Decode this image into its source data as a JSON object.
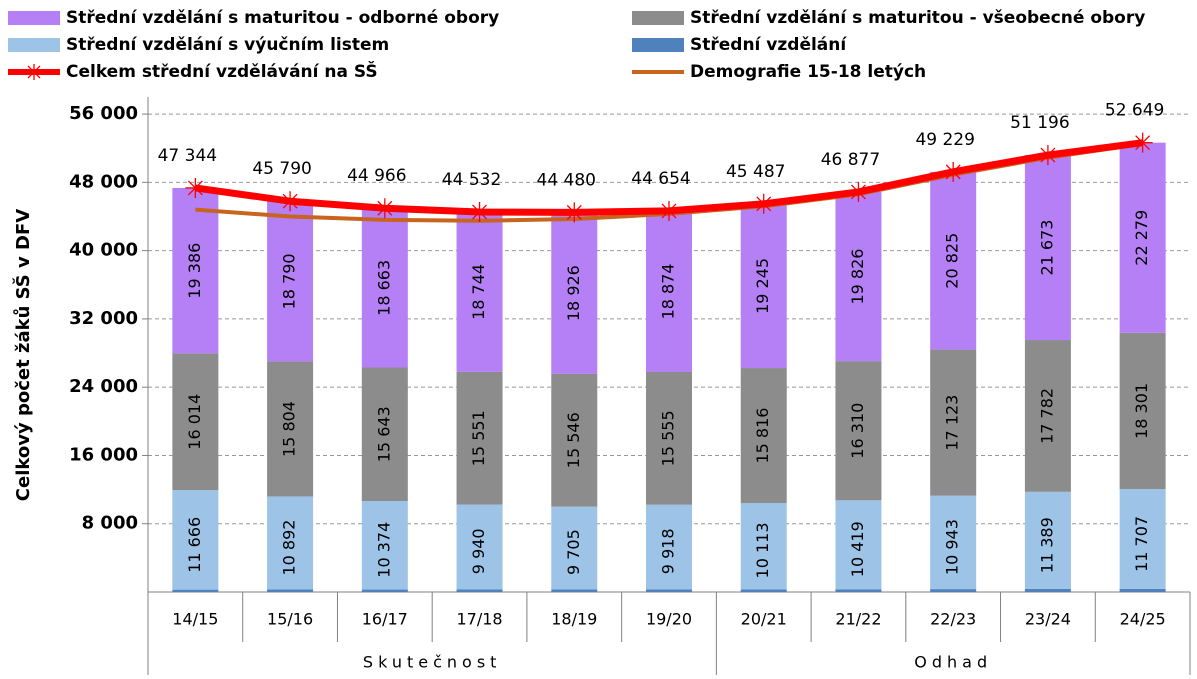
{
  "chart_data": {
    "type": "stacked_bar_line",
    "y_axis_label": "Celkový počet žáků SŠ v DFV",
    "categories": [
      "14/15",
      "15/16",
      "16/17",
      "17/18",
      "18/19",
      "19/20",
      "20/21",
      "21/22",
      "22/23",
      "23/24",
      "24/25"
    ],
    "groups": [
      "Skutečnost",
      "Odhad"
    ],
    "ylim": [
      0,
      58000
    ],
    "yticks": [
      {
        "value": 8000,
        "label": "8 000"
      },
      {
        "value": 16000,
        "label": "16 000"
      },
      {
        "value": 24000,
        "label": "24 000"
      },
      {
        "value": 32000,
        "label": "32 000"
      },
      {
        "value": 40000,
        "label": "40 000"
      },
      {
        "value": 48000,
        "label": "48 000"
      },
      {
        "value": 56000,
        "label": "56 000"
      }
    ],
    "grid": true,
    "series": [
      {
        "name": "Střední vzdělání",
        "color": "#4f81bd",
        "kind": "bar",
        "values": [
          278,
          304,
          286,
          297,
          303,
          307,
          313,
          322,
          339,
          353,
          362
        ]
      },
      {
        "name": "Střední vzdělání s výučním listem",
        "color": "#9dc3e6",
        "kind": "bar",
        "values": [
          11666,
          10892,
          10374,
          9940,
          9705,
          9918,
          10113,
          10419,
          10943,
          11389,
          11707
        ],
        "value_labels": [
          "11 666",
          "10 892",
          "10 374",
          "9 940",
          "9 705",
          "9 918",
          "10 113",
          "10 419",
          "10 943",
          "11 389",
          "11 707"
        ]
      },
      {
        "name": "Střední vzdělání s maturitou - všeobecné obory",
        "color": "#8c8c8c",
        "kind": "bar",
        "values": [
          16014,
          15804,
          15643,
          15551,
          15546,
          15555,
          15816,
          16310,
          17123,
          17782,
          18301
        ],
        "value_labels": [
          "16 014",
          "15 804",
          "15 643",
          "15 551",
          "15 546",
          "15 555",
          "15 816",
          "16 310",
          "17 123",
          "17 782",
          "18 301"
        ]
      },
      {
        "name": "Střední vzdělání s maturitou - odborné obory",
        "color": "#b580f5",
        "kind": "bar",
        "values": [
          19386,
          18790,
          18663,
          18744,
          18926,
          18874,
          19245,
          19826,
          20825,
          21673,
          22279
        ],
        "value_labels": [
          "19 386",
          "18 790",
          "18 663",
          "18 744",
          "18 926",
          "18 874",
          "19 245",
          "19 826",
          "20 825",
          "21 673",
          "22 279"
        ]
      },
      {
        "name": "Celkem střední vzdělávání na SŠ",
        "color": "#ff0000",
        "kind": "line",
        "values": [
          47344,
          45790,
          44966,
          44532,
          44480,
          44654,
          45487,
          46877,
          49229,
          51196,
          52649
        ],
        "value_labels": [
          "47 344",
          "45 790",
          "44 966",
          "44 532",
          "44 480",
          "44 654",
          "45 487",
          "46 877",
          "49 229",
          "51 196",
          "52 649"
        ]
      },
      {
        "name": "Demografie 15-18 letých",
        "color": "#c8641e",
        "kind": "line",
        "values": [
          44800,
          44000,
          43600,
          43500,
          43700,
          44300,
          45200,
          46600,
          48900,
          50900,
          52500
        ]
      }
    ]
  }
}
